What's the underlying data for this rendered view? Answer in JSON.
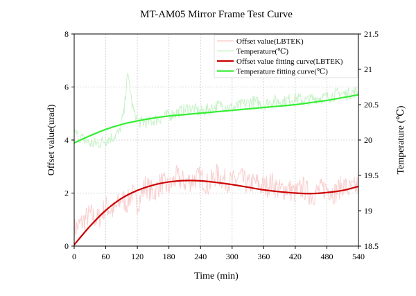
{
  "chart_data": {
    "type": "line",
    "title": "MT-AM05 Mirror Frame Test Curve",
    "xlabel": "Time (min)",
    "ylabel": "Offset value(urad)",
    "y2label": "Temperature (℃)",
    "xlim": [
      0,
      540
    ],
    "ylim": [
      0,
      8
    ],
    "y2lim": [
      18.5,
      21.5
    ],
    "xticks": [
      "0",
      "60",
      "120",
      "180",
      "240",
      "300",
      "360",
      "420",
      "480",
      "540"
    ],
    "yticks": [
      "0",
      "2",
      "4",
      "6",
      "8"
    ],
    "y2ticks": [
      "18.5",
      "19",
      "19.5",
      "20",
      "20.5",
      "21",
      "21.5"
    ],
    "grid": true,
    "legend_position": "top-right",
    "series": [
      {
        "name": "Offset value(LBTEK)",
        "axis": "left",
        "color": "#f8d0d0",
        "style": "noisy-raw",
        "x": [
          0,
          15,
          30,
          45,
          60,
          75,
          90,
          100,
          110,
          120,
          135,
          150,
          165,
          180,
          195,
          210,
          225,
          240,
          255,
          270,
          285,
          300,
          315,
          330,
          345,
          360,
          375,
          390,
          405,
          420,
          435,
          450,
          465,
          480,
          495,
          510,
          525,
          540
        ],
        "values": [
          0.6,
          0.9,
          1.2,
          1.0,
          1.5,
          1.3,
          1.8,
          1.6,
          2.0,
          1.6,
          2.3,
          2.0,
          2.4,
          2.2,
          2.6,
          2.4,
          2.5,
          2.6,
          2.3,
          2.7,
          2.5,
          2.4,
          2.6,
          2.3,
          2.4,
          2.2,
          2.4,
          2.1,
          2.2,
          2.0,
          2.2,
          1.9,
          2.1,
          2.2,
          2.0,
          2.3,
          2.1,
          2.3
        ]
      },
      {
        "name": "Temperature(℃)",
        "axis": "right",
        "color": "#c8f2c8",
        "style": "noisy-raw",
        "x": [
          0,
          10,
          20,
          30,
          45,
          60,
          75,
          85,
          95,
          100,
          105,
          110,
          115,
          125,
          140,
          160,
          180,
          200,
          220,
          240,
          260,
          280,
          300,
          320,
          340,
          360,
          380,
          400,
          420,
          440,
          460,
          480,
          500,
          520,
          540
        ],
        "values": [
          20.1,
          20.05,
          20.0,
          19.95,
          19.95,
          20.0,
          20.05,
          20.1,
          20.4,
          20.9,
          20.8,
          20.5,
          20.35,
          20.25,
          20.25,
          20.3,
          20.35,
          20.4,
          20.45,
          20.4,
          20.45,
          20.5,
          20.45,
          20.5,
          20.55,
          20.5,
          20.55,
          20.55,
          20.6,
          20.55,
          20.6,
          20.6,
          20.65,
          20.65,
          20.7
        ]
      },
      {
        "name": "Offset value fitting curve(LBTEK)",
        "axis": "left",
        "color": "#cc0000",
        "style": "smooth",
        "x": [
          0,
          30,
          60,
          90,
          120,
          150,
          180,
          210,
          240,
          270,
          300,
          330,
          360,
          390,
          420,
          450,
          480,
          510,
          540
        ],
        "values": [
          0.05,
          0.75,
          1.35,
          1.8,
          2.1,
          2.3,
          2.42,
          2.47,
          2.46,
          2.4,
          2.32,
          2.22,
          2.12,
          2.05,
          2.0,
          1.98,
          2.02,
          2.1,
          2.25
        ]
      },
      {
        "name": "Temperature fitting curve(℃)",
        "axis": "right",
        "color": "#33ee33",
        "style": "smooth",
        "x": [
          0,
          30,
          60,
          90,
          120,
          150,
          180,
          210,
          240,
          270,
          300,
          330,
          360,
          390,
          420,
          450,
          480,
          510,
          540
        ],
        "values": [
          19.96,
          20.06,
          20.15,
          20.22,
          20.27,
          20.31,
          20.34,
          20.36,
          20.38,
          20.4,
          20.42,
          20.44,
          20.46,
          20.48,
          20.5,
          20.53,
          20.56,
          20.6,
          20.64
        ]
      }
    ]
  }
}
